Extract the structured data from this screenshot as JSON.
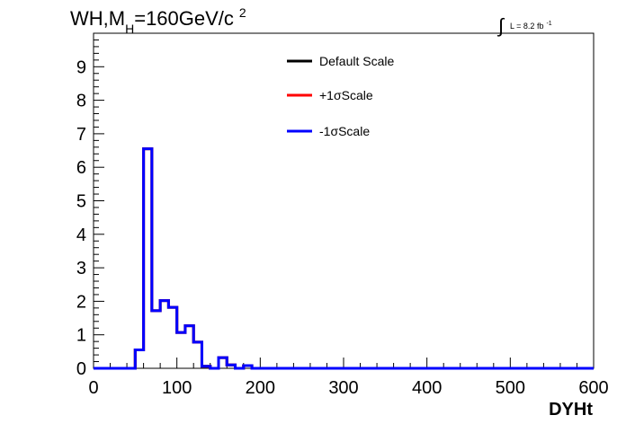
{
  "chart_data": {
    "type": "line",
    "title": "WH,M",
    "title_subscript": "H",
    "title_rest": "=160GeV/c",
    "title_superscript": "2",
    "lumi_integral_symbol": "∫",
    "lumi_label": "L = 8.2 fb",
    "lumi_superscript": "-1",
    "xlabel": "DYHt",
    "ylabel": "",
    "xlim": [
      0,
      600
    ],
    "ylim": [
      0,
      10
    ],
    "x_ticks": [
      "0",
      "100",
      "200",
      "300",
      "400",
      "500",
      "600"
    ],
    "y_ticks": [
      "0",
      "1",
      "2",
      "3",
      "4",
      "5",
      "6",
      "7",
      "8",
      "9"
    ],
    "bin_width": 10,
    "legend_placement": "top-center",
    "series": [
      {
        "name": "Default Scale",
        "color": "#000000",
        "values": [
          0,
          0,
          0,
          0,
          0,
          0.55,
          6.55,
          1.72,
          2.02,
          1.82,
          1.07,
          1.27,
          0.78,
          0.06,
          0,
          0.32,
          0.1,
          0,
          0.08,
          0,
          0,
          0,
          0,
          0,
          0,
          0,
          0,
          0,
          0,
          0,
          0,
          0,
          0,
          0,
          0,
          0,
          0,
          0,
          0,
          0,
          0,
          0,
          0,
          0,
          0,
          0,
          0,
          0,
          0,
          0,
          0,
          0,
          0,
          0,
          0,
          0,
          0,
          0,
          0,
          0
        ]
      },
      {
        "name": "+1σScale",
        "color": "#ff0000",
        "values": [
          0,
          0,
          0,
          0,
          0,
          0.55,
          6.55,
          1.72,
          2.02,
          1.82,
          1.07,
          1.27,
          0.78,
          0.06,
          0,
          0.32,
          0.1,
          0,
          0.08,
          0,
          0,
          0,
          0,
          0,
          0,
          0,
          0,
          0,
          0,
          0,
          0,
          0,
          0,
          0,
          0,
          0,
          0,
          0,
          0,
          0,
          0,
          0,
          0,
          0,
          0,
          0,
          0,
          0,
          0,
          0,
          0,
          0,
          0,
          0,
          0,
          0,
          0,
          0,
          0,
          0
        ]
      },
      {
        "name": "-1σScale",
        "color": "#0000ff",
        "values": [
          0,
          0,
          0,
          0,
          0,
          0.55,
          6.55,
          1.72,
          2.02,
          1.82,
          1.07,
          1.27,
          0.78,
          0.06,
          0,
          0.32,
          0.1,
          0,
          0.08,
          0,
          0,
          0,
          0,
          0,
          0,
          0,
          0,
          0,
          0,
          0,
          0,
          0,
          0,
          0,
          0,
          0,
          0,
          0,
          0,
          0,
          0,
          0,
          0,
          0,
          0,
          0,
          0,
          0,
          0,
          0,
          0,
          0,
          0,
          0,
          0,
          0,
          0,
          0,
          0,
          0
        ]
      }
    ]
  }
}
